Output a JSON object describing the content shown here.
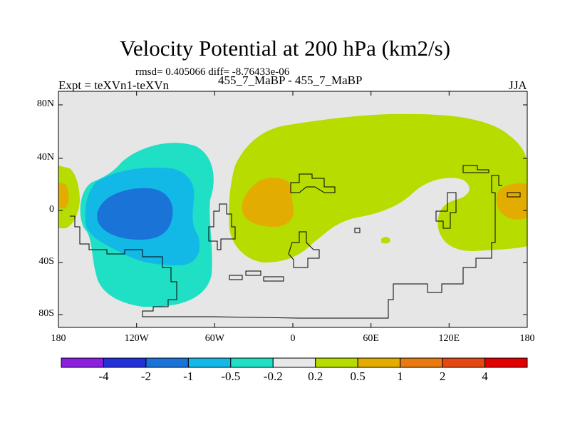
{
  "title": "Velocity Potential at 200 hPa (km2/s)",
  "stats": "rmsd= 0.405066 diff= -8.76433e-06",
  "left_label": "Expt = teXVn1-teXVn",
  "center_label": "455_7_MaBP - 455_7_MaBP",
  "right_label": "JJA",
  "x_ticks": [
    "180",
    "120W",
    "60W",
    "0",
    "60E",
    "120E",
    "180"
  ],
  "y_ticks": [
    "80N",
    "40N",
    "0",
    "40S",
    "80S"
  ],
  "colorbar": {
    "labels": [
      "-4",
      "-2",
      "-1",
      "-0.5",
      "-0.2",
      "0.2",
      "0.5",
      "1",
      "2",
      "4"
    ],
    "colors": [
      "#8c1ee0",
      "#2430d8",
      "#1a74d8",
      "#12b8e6",
      "#1fe0c4",
      "#e8e8e8",
      "#b6dc00",
      "#e2ad00",
      "#e87a10",
      "#e44810",
      "#e00000"
    ]
  },
  "field_colors": {
    "neutral": "#e6e6e6",
    "pos_0_2": "#b6dc00",
    "pos_0_5": "#e2ad00",
    "neg_0_2": "#1fe0c4",
    "neg_0_5": "#12b8e6",
    "neg_1": "#1a74d8"
  }
}
